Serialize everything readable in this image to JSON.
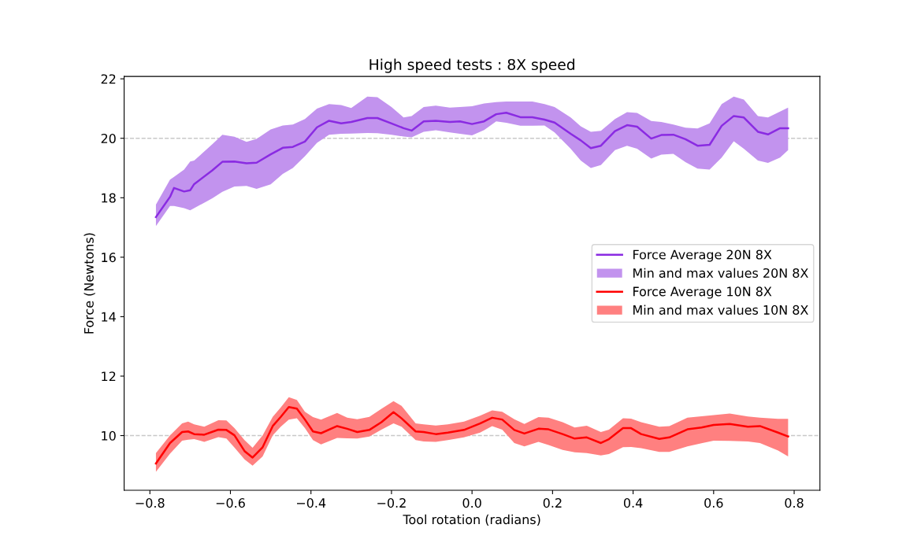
{
  "chart_data": {
    "type": "line",
    "title": "High speed tests : 8X speed",
    "xlabel": "Tool rotation (radians)",
    "ylabel": "Force (Newtons)",
    "xlim": [
      -0.864,
      0.864
    ],
    "ylim": [
      8.16,
      22.08
    ],
    "xticks": [
      {
        "value": -0.8,
        "label": "−0.8"
      },
      {
        "value": -0.6,
        "label": "−0.6"
      },
      {
        "value": -0.4,
        "label": "−0.4"
      },
      {
        "value": -0.2,
        "label": "−0.2"
      },
      {
        "value": 0,
        "label": "0.0"
      },
      {
        "value": 0.2,
        "label": "0.2"
      },
      {
        "value": 0.4,
        "label": "0.4"
      },
      {
        "value": 0.6,
        "label": "0.6"
      },
      {
        "value": 0.8,
        "label": "0.8"
      }
    ],
    "yticks": [
      10,
      12,
      14,
      16,
      18,
      20,
      22
    ],
    "grid": false,
    "legend": "right",
    "ref_lines": [
      {
        "axis": "y",
        "value": 20,
        "color": "#c8c8c8",
        "line_style": "dashed"
      },
      {
        "axis": "y",
        "value": 10,
        "color": "#c8c8c8",
        "line_style": "dashed"
      }
    ],
    "series": [
      {
        "type": "line",
        "name": "Force Average 20N 8X",
        "color": "#8a2be2",
        "x": [
          -0.785,
          -0.75,
          -0.74,
          -0.715,
          -0.7,
          -0.69,
          -0.645,
          -0.62,
          -0.59,
          -0.56,
          -0.535,
          -0.5,
          -0.47,
          -0.445,
          -0.415,
          -0.385,
          -0.355,
          -0.325,
          -0.3,
          -0.26,
          -0.235,
          -0.2,
          -0.17,
          -0.15,
          -0.12,
          -0.09,
          -0.055,
          -0.03,
          0.0,
          0.03,
          0.06,
          0.085,
          0.12,
          0.15,
          0.18,
          0.205,
          0.245,
          0.27,
          0.295,
          0.32,
          0.355,
          0.385,
          0.41,
          0.445,
          0.47,
          0.5,
          0.53,
          0.56,
          0.59,
          0.62,
          0.65,
          0.675,
          0.71,
          0.735,
          0.765,
          0.785
        ],
        "values": [
          17.35,
          18.03,
          18.33,
          18.21,
          18.25,
          18.46,
          18.92,
          19.21,
          19.22,
          19.16,
          19.18,
          19.46,
          19.68,
          19.71,
          19.89,
          20.37,
          20.59,
          20.5,
          20.55,
          20.68,
          20.68,
          20.5,
          20.34,
          20.26,
          20.57,
          20.59,
          20.55,
          20.57,
          20.48,
          20.57,
          20.81,
          20.86,
          20.71,
          20.71,
          20.63,
          20.53,
          20.15,
          19.93,
          19.67,
          19.75,
          20.24,
          20.44,
          20.39,
          19.99,
          20.11,
          20.12,
          19.97,
          19.75,
          19.78,
          20.42,
          20.75,
          20.7,
          20.22,
          20.13,
          20.34,
          20.34
        ],
        "lower": [
          17.05,
          17.72,
          17.72,
          17.65,
          17.58,
          17.65,
          17.98,
          18.2,
          18.38,
          18.4,
          18.3,
          18.45,
          18.8,
          19.0,
          19.4,
          19.85,
          20.12,
          20.15,
          20.16,
          20.18,
          20.17,
          20.12,
          20.06,
          20.03,
          20.22,
          20.27,
          20.2,
          20.15,
          20.1,
          20.28,
          20.57,
          20.52,
          20.42,
          20.42,
          20.43,
          20.2,
          19.65,
          19.25,
          19.0,
          19.1,
          19.6,
          19.75,
          19.65,
          19.32,
          19.45,
          19.48,
          19.2,
          18.98,
          18.95,
          19.35,
          19.9,
          19.65,
          19.25,
          19.17,
          19.35,
          19.6
        ],
        "upper": [
          17.77,
          18.61,
          18.7,
          18.95,
          19.22,
          19.25,
          19.8,
          20.12,
          20.05,
          19.88,
          19.98,
          20.3,
          20.43,
          20.46,
          20.65,
          21.0,
          21.15,
          21.12,
          21.02,
          21.4,
          21.38,
          21.05,
          20.7,
          20.75,
          21.05,
          21.1,
          21.03,
          21.05,
          21.08,
          21.17,
          21.22,
          21.24,
          21.24,
          21.24,
          21.15,
          21.05,
          20.7,
          20.4,
          20.22,
          20.25,
          20.65,
          20.88,
          20.85,
          20.58,
          20.55,
          20.46,
          20.36,
          20.33,
          20.5,
          21.15,
          21.4,
          21.3,
          20.75,
          20.7,
          20.9,
          21.03
        ]
      },
      {
        "type": "area",
        "name": "Min and max values 20N 8X",
        "color": "#c293ee"
      },
      {
        "type": "line",
        "name": "Force Average 10N 8X",
        "color": "#ff0000",
        "x": [
          -0.785,
          -0.75,
          -0.72,
          -0.705,
          -0.69,
          -0.665,
          -0.63,
          -0.61,
          -0.59,
          -0.565,
          -0.545,
          -0.52,
          -0.495,
          -0.475,
          -0.455,
          -0.435,
          -0.415,
          -0.395,
          -0.375,
          -0.335,
          -0.31,
          -0.285,
          -0.255,
          -0.225,
          -0.195,
          -0.175,
          -0.14,
          -0.12,
          -0.09,
          -0.06,
          -0.02,
          0.02,
          0.05,
          0.075,
          0.105,
          0.13,
          0.165,
          0.19,
          0.225,
          0.255,
          0.285,
          0.32,
          0.34,
          0.375,
          0.395,
          0.42,
          0.465,
          0.49,
          0.535,
          0.57,
          0.6,
          0.64,
          0.685,
          0.715,
          0.76,
          0.785
        ],
        "values": [
          9.06,
          9.75,
          10.12,
          10.14,
          10.05,
          10.03,
          10.2,
          10.19,
          10.01,
          9.48,
          9.26,
          9.61,
          10.32,
          10.63,
          10.96,
          10.91,
          10.54,
          10.14,
          10.08,
          10.32,
          10.23,
          10.12,
          10.19,
          10.45,
          10.79,
          10.58,
          10.14,
          10.12,
          10.05,
          10.1,
          10.19,
          10.41,
          10.6,
          10.54,
          10.19,
          10.07,
          10.23,
          10.21,
          10.05,
          9.9,
          9.94,
          9.75,
          9.88,
          10.25,
          10.25,
          10.05,
          9.89,
          9.94,
          10.21,
          10.27,
          10.36,
          10.39,
          10.3,
          10.32,
          10.1,
          9.97
        ],
        "lower": [
          8.78,
          9.39,
          9.83,
          9.86,
          9.88,
          9.79,
          9.95,
          9.9,
          9.6,
          9.2,
          8.99,
          9.3,
          10.01,
          10.3,
          10.54,
          10.58,
          10.25,
          9.85,
          9.7,
          9.92,
          9.91,
          9.9,
          9.97,
          10.2,
          10.41,
          10.3,
          9.85,
          9.8,
          9.79,
          9.85,
          9.94,
          10.1,
          10.32,
          10.2,
          9.75,
          9.64,
          9.79,
          9.68,
          9.52,
          9.44,
          9.41,
          9.33,
          9.38,
          9.61,
          9.62,
          9.58,
          9.45,
          9.45,
          9.64,
          9.74,
          9.83,
          9.82,
          9.8,
          9.75,
          9.5,
          9.3
        ],
        "upper": [
          9.41,
          10.01,
          10.41,
          10.47,
          10.38,
          10.3,
          10.52,
          10.51,
          10.25,
          9.85,
          9.59,
          10.01,
          10.63,
          10.95,
          11.29,
          11.2,
          10.8,
          10.62,
          10.54,
          10.76,
          10.6,
          10.55,
          10.63,
          10.9,
          11.16,
          11.0,
          10.41,
          10.38,
          10.34,
          10.38,
          10.47,
          10.67,
          10.85,
          10.8,
          10.55,
          10.39,
          10.62,
          10.6,
          10.45,
          10.27,
          10.33,
          10.12,
          10.2,
          10.58,
          10.57,
          10.45,
          10.3,
          10.32,
          10.6,
          10.65,
          10.69,
          10.74,
          10.64,
          10.6,
          10.56,
          10.56
        ]
      },
      {
        "type": "area",
        "name": "Min and max values 10N 8X",
        "color": "#ff8080"
      }
    ]
  }
}
